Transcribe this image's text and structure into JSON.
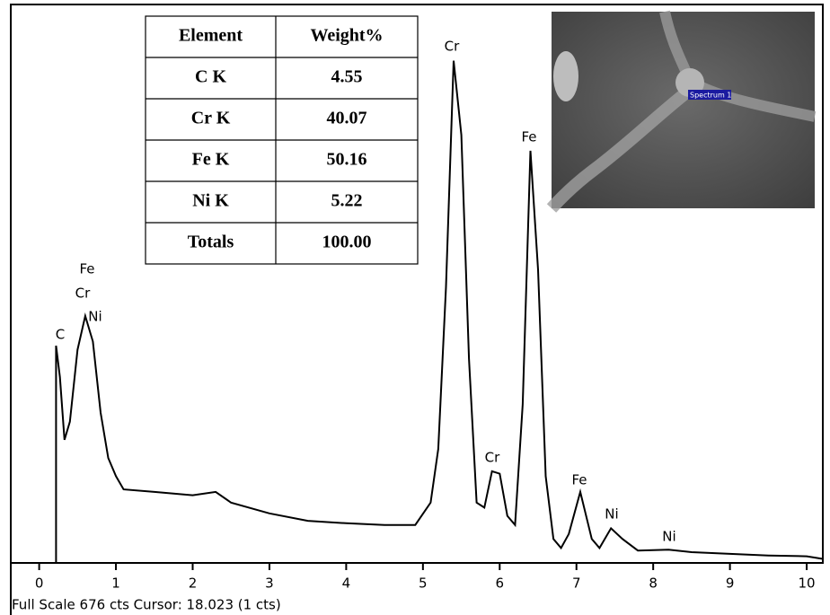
{
  "chart_data": {
    "type": "line",
    "x": [
      0.22,
      0.22,
      0.27,
      0.33,
      0.4,
      0.5,
      0.6,
      0.7,
      0.8,
      0.9,
      1.0,
      1.1,
      1.5,
      2.0,
      2.3,
      2.5,
      3.0,
      3.5,
      4.0,
      4.5,
      4.9,
      5.1,
      5.2,
      5.3,
      5.4,
      5.5,
      5.6,
      5.7,
      5.8,
      5.9,
      6.0,
      6.1,
      6.2,
      6.3,
      6.4,
      6.5,
      6.6,
      6.7,
      6.8,
      6.9,
      7.05,
      7.2,
      7.3,
      7.45,
      7.6,
      7.8,
      8.2,
      8.5,
      9.0,
      9.5,
      10.0,
      10.2
    ],
    "values": [
      0,
      263,
      225,
      149,
      171,
      258,
      299,
      268,
      182,
      127,
      105,
      89,
      86,
      82,
      86,
      73,
      60,
      51,
      48,
      46,
      46,
      73,
      138,
      334,
      608,
      518,
      247,
      73,
      67,
      111,
      108,
      57,
      46,
      192,
      499,
      355,
      105,
      29,
      18,
      35,
      86,
      29,
      18,
      42,
      29,
      15,
      16,
      13,
      11,
      9,
      8,
      5
    ],
    "color": "#000000",
    "xlim": [
      -0.37,
      10.21
    ],
    "xticks": [
      0,
      1,
      2,
      3,
      4,
      5,
      6,
      7,
      8,
      9,
      10
    ],
    "ylim": [
      0,
      676
    ],
    "annotations": [
      "C",
      "Fe",
      "Cr",
      "Ni",
      "Cr",
      "Cr",
      "Fe",
      "Fe",
      "Ni",
      "Ni"
    ],
    "footer": "Full Scale 676 cts Cursor: 18.023  (1 cts)"
  },
  "table": {
    "header": [
      "Element",
      "Weight%"
    ],
    "rows": [
      [
        "C K",
        "4.55"
      ],
      [
        "Cr K",
        "40.07"
      ],
      [
        "Fe K",
        "50.16"
      ],
      [
        "Ni K",
        "5.22"
      ],
      [
        "Totals",
        "100.00"
      ]
    ]
  },
  "image": {
    "label": "Spectrum 1"
  }
}
